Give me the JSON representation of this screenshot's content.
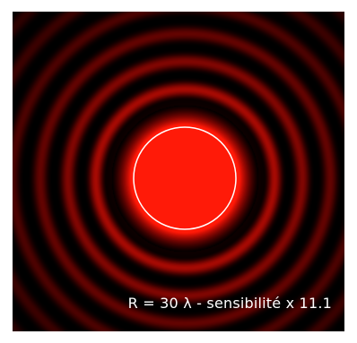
{
  "caption": "R = 30 λ  -  sensibilité x 11.1",
  "colors": {
    "background": "#000000",
    "peak": "#ff1a00",
    "aperture_outline": "#ffffff",
    "caption_text": "#ffffff"
  }
}
